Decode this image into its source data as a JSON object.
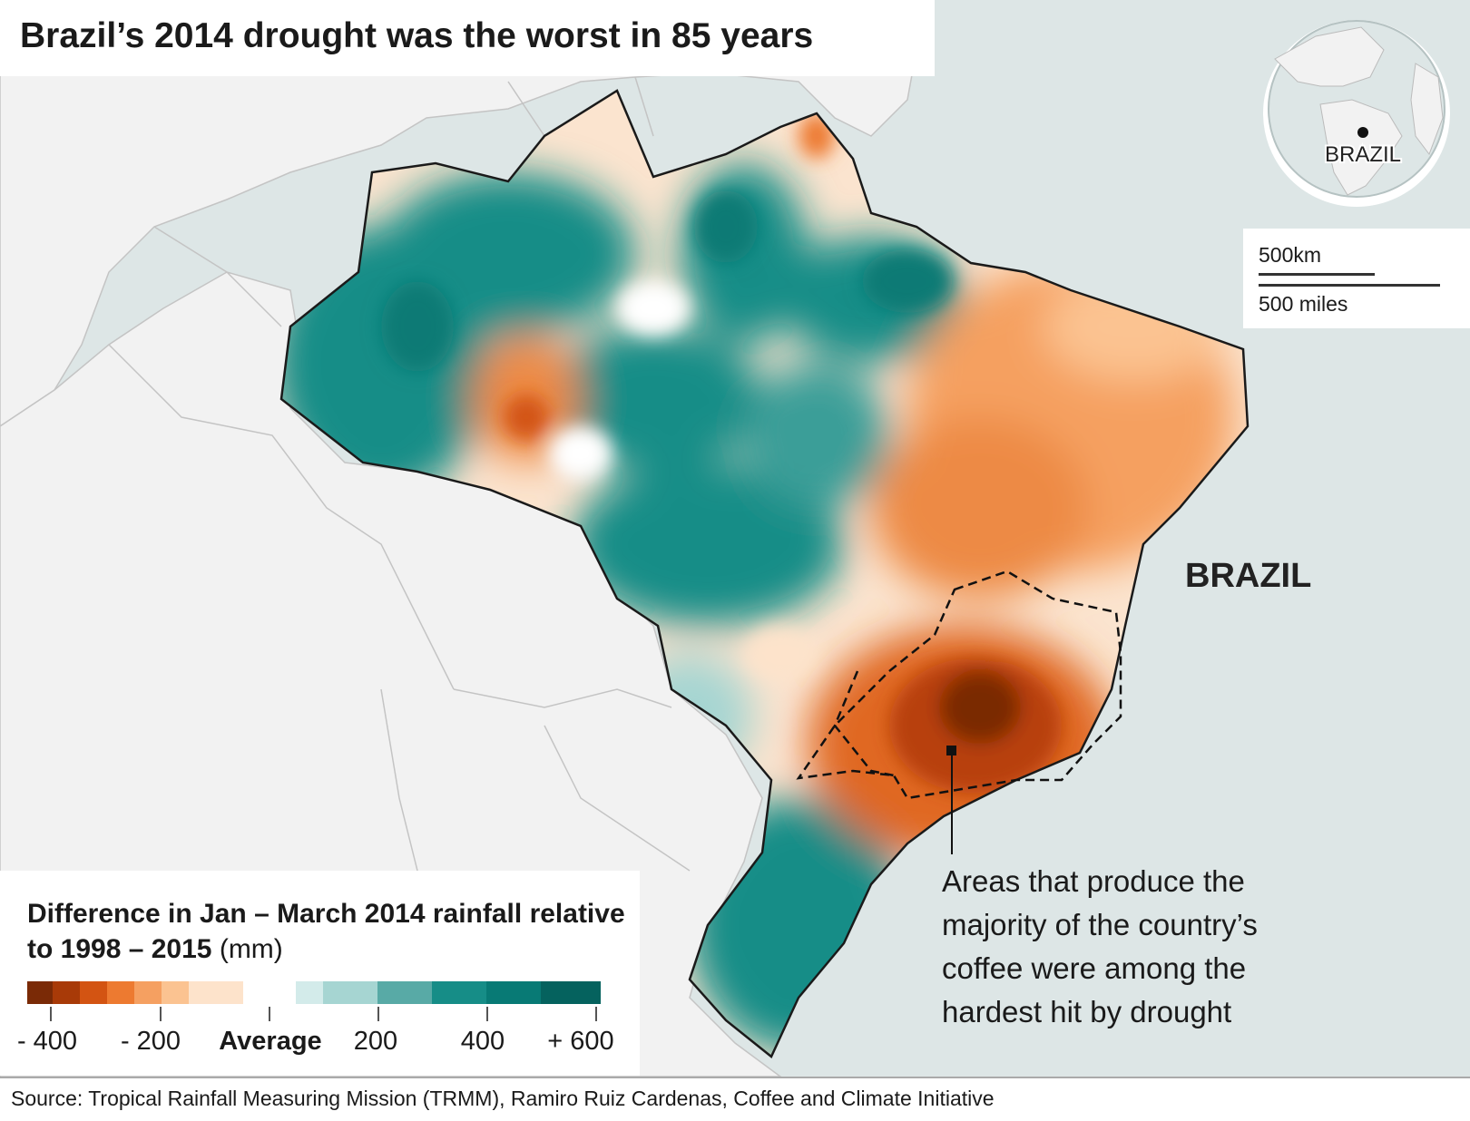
{
  "title": "Brazil’s 2014 drought was the worst in 85 years",
  "inset": {
    "globe_label": "BRAZIL",
    "scale_km": "500km",
    "scale_miles": "500 miles"
  },
  "country_label": "BRAZIL",
  "annotation": "Areas that produce the majority of the country’s coffee were among the hardest hit by drought",
  "legend": {
    "title": "Difference in Jan – March 2014 rainfall relative to 1998 – 2015",
    "unit": "(mm)",
    "swatches": [
      "#7a2a06",
      "#a83a08",
      "#d35412",
      "#ed7a30",
      "#f5a061",
      "#fbc391",
      "#fde3cb",
      "#ffffff",
      "#d3ebea",
      "#a6d5d2",
      "#58aaa6",
      "#168d87",
      "#087a75",
      "#05625e"
    ],
    "tick_labels": [
      "- 400",
      "- 200",
      "Average",
      "200",
      "400",
      "+ 600"
    ]
  },
  "source": "Source: Tropical Rainfall Measuring Mission (TRMM), Ramiro Ruiz Cardenas, Coffee and Climate Initiative",
  "colors": {
    "ocean": "#dde6e6",
    "land": "#f2f2f2",
    "drought": "#d35412",
    "wet": "#168d87"
  }
}
